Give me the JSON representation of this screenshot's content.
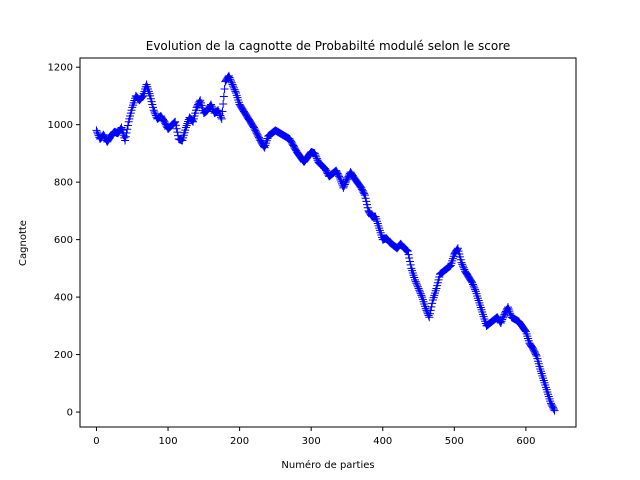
{
  "chart_data": {
    "type": "scatter",
    "title": "Evolution de la cagnotte de Probabilté modulé selon le score",
    "xlabel": "Numéro de parties",
    "ylabel": "Cagnotte",
    "xlim": [
      -23,
      670
    ],
    "ylim": [
      -52,
      1232
    ],
    "xticks": [
      0,
      100,
      200,
      300,
      400,
      500,
      600
    ],
    "yticks": [
      0,
      200,
      400,
      600,
      800,
      1000,
      1200
    ],
    "marker": "+",
    "marker_color": "#0000ff",
    "grid": false,
    "keypoints": [
      [
        0,
        980
      ],
      [
        5,
        950
      ],
      [
        10,
        965
      ],
      [
        15,
        940
      ],
      [
        20,
        960
      ],
      [
        25,
        975
      ],
      [
        30,
        970
      ],
      [
        35,
        990
      ],
      [
        40,
        945
      ],
      [
        45,
        1010
      ],
      [
        50,
        1060
      ],
      [
        55,
        1100
      ],
      [
        60,
        1085
      ],
      [
        65,
        1100
      ],
      [
        70,
        1140
      ],
      [
        75,
        1100
      ],
      [
        80,
        1050
      ],
      [
        85,
        1020
      ],
      [
        90,
        1030
      ],
      [
        95,
        1010
      ],
      [
        100,
        985
      ],
      [
        110,
        1010
      ],
      [
        115,
        950
      ],
      [
        120,
        945
      ],
      [
        125,
        990
      ],
      [
        130,
        1025
      ],
      [
        135,
        1010
      ],
      [
        140,
        1060
      ],
      [
        145,
        1085
      ],
      [
        150,
        1040
      ],
      [
        155,
        1050
      ],
      [
        160,
        1070
      ],
      [
        165,
        1040
      ],
      [
        170,
        1050
      ],
      [
        175,
        1020
      ],
      [
        180,
        1150
      ],
      [
        185,
        1170
      ],
      [
        190,
        1140
      ],
      [
        195,
        1110
      ],
      [
        200,
        1070
      ],
      [
        210,
        1030
      ],
      [
        220,
        990
      ],
      [
        230,
        940
      ],
      [
        235,
        920
      ],
      [
        240,
        960
      ],
      [
        250,
        980
      ],
      [
        260,
        965
      ],
      [
        270,
        950
      ],
      [
        280,
        905
      ],
      [
        290,
        870
      ],
      [
        300,
        905
      ],
      [
        305,
        900
      ],
      [
        310,
        870
      ],
      [
        320,
        845
      ],
      [
        325,
        820
      ],
      [
        330,
        830
      ],
      [
        335,
        840
      ],
      [
        340,
        815
      ],
      [
        345,
        780
      ],
      [
        350,
        810
      ],
      [
        355,
        835
      ],
      [
        360,
        815
      ],
      [
        370,
        780
      ],
      [
        375,
        755
      ],
      [
        380,
        700
      ],
      [
        385,
        680
      ],
      [
        390,
        680
      ],
      [
        395,
        640
      ],
      [
        400,
        600
      ],
      [
        405,
        605
      ],
      [
        410,
        590
      ],
      [
        415,
        580
      ],
      [
        420,
        570
      ],
      [
        425,
        585
      ],
      [
        430,
        570
      ],
      [
        435,
        560
      ],
      [
        440,
        500
      ],
      [
        445,
        460
      ],
      [
        450,
        430
      ],
      [
        455,
        400
      ],
      [
        460,
        360
      ],
      [
        465,
        330
      ],
      [
        470,
        390
      ],
      [
        475,
        430
      ],
      [
        480,
        480
      ],
      [
        485,
        490
      ],
      [
        490,
        500
      ],
      [
        495,
        510
      ],
      [
        500,
        550
      ],
      [
        505,
        570
      ],
      [
        510,
        520
      ],
      [
        515,
        490
      ],
      [
        520,
        470
      ],
      [
        525,
        450
      ],
      [
        530,
        420
      ],
      [
        535,
        380
      ],
      [
        540,
        340
      ],
      [
        545,
        300
      ],
      [
        550,
        310
      ],
      [
        555,
        320
      ],
      [
        560,
        330
      ],
      [
        565,
        310
      ],
      [
        570,
        340
      ],
      [
        575,
        365
      ],
      [
        580,
        330
      ],
      [
        590,
        315
      ],
      [
        600,
        280
      ],
      [
        605,
        240
      ],
      [
        610,
        220
      ],
      [
        615,
        195
      ],
      [
        620,
        150
      ],
      [
        625,
        110
      ],
      [
        630,
        70
      ],
      [
        635,
        30
      ],
      [
        640,
        5
      ]
    ]
  }
}
